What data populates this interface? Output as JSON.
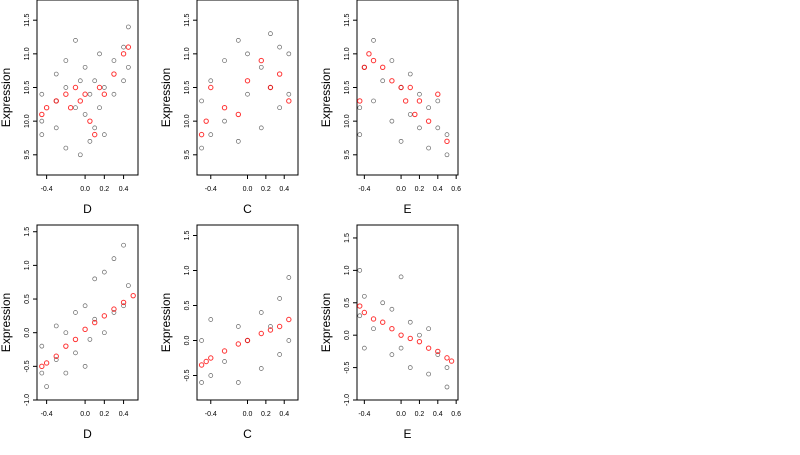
{
  "chart_data": [
    {
      "type": "scatter",
      "title": "",
      "xlabel": "D",
      "ylabel": "Expression",
      "xlim": [
        -0.5,
        0.55
      ],
      "ylim": [
        9.2,
        11.8
      ],
      "xticks": [
        "-0.4",
        "0.0",
        "0.2",
        "0.4"
      ],
      "yticks": [
        "9.5",
        "10.0",
        "10.5",
        "11.0",
        "11.5"
      ],
      "colors": {
        "observed": "#000000",
        "fitted": "#ff0000"
      },
      "series": [
        {
          "x": [
            -0.45,
            -0.45,
            -0.45,
            -0.3,
            -0.3,
            -0.3,
            -0.2,
            -0.2,
            -0.2,
            -0.1,
            -0.1,
            -0.05,
            -0.05,
            0.0,
            0.0,
            0.05,
            0.05,
            0.1,
            0.1,
            0.15,
            0.15,
            0.2,
            0.2,
            0.3,
            0.3,
            0.4,
            0.4,
            0.45,
            0.45
          ],
          "y": [
            10.0,
            10.4,
            9.8,
            10.3,
            10.7,
            9.9,
            10.5,
            9.6,
            10.9,
            10.2,
            11.2,
            9.5,
            10.6,
            10.1,
            10.8,
            9.7,
            10.4,
            10.6,
            9.9,
            10.2,
            11.0,
            10.5,
            9.8,
            10.9,
            10.4,
            11.1,
            10.6,
            11.4,
            10.8
          ]
        },
        {
          "x": [
            -0.45,
            -0.4,
            -0.3,
            -0.2,
            -0.15,
            -0.1,
            -0.05,
            0.0,
            0.05,
            0.1,
            0.15,
            0.2,
            0.3,
            0.4,
            0.45
          ],
          "y": [
            10.1,
            10.2,
            10.3,
            10.4,
            10.2,
            10.5,
            10.3,
            10.4,
            10.0,
            9.8,
            10.5,
            10.4,
            10.7,
            11.0,
            11.1
          ]
        }
      ]
    },
    {
      "type": "scatter",
      "title": "",
      "xlabel": "C",
      "ylabel": "Expression",
      "xlim": [
        -0.55,
        0.55
      ],
      "ylim": [
        9.2,
        11.8
      ],
      "xticks": [
        "-0.4",
        "0.0",
        "0.2",
        "0.4"
      ],
      "yticks": [
        "9.5",
        "10.0",
        "10.5",
        "11.0",
        "11.5"
      ],
      "colors": {
        "observed": "#000000",
        "fitted": "#ff0000"
      },
      "series": [
        {
          "x": [
            -0.5,
            -0.5,
            -0.4,
            -0.4,
            -0.25,
            -0.25,
            -0.1,
            -0.1,
            0.0,
            0.0,
            0.15,
            0.15,
            0.25,
            0.25,
            0.35,
            0.35,
            0.45,
            0.45
          ],
          "y": [
            9.6,
            10.3,
            9.8,
            10.6,
            10.0,
            10.9,
            9.7,
            11.2,
            10.4,
            11.0,
            9.9,
            10.8,
            10.5,
            11.3,
            10.2,
            11.1,
            10.4,
            11.0
          ]
        },
        {
          "x": [
            -0.5,
            -0.45,
            -0.4,
            -0.25,
            -0.1,
            0.0,
            0.15,
            0.25,
            0.35,
            0.45
          ],
          "y": [
            9.8,
            10.0,
            10.5,
            10.2,
            10.1,
            10.6,
            10.9,
            10.5,
            10.7,
            10.3
          ]
        }
      ]
    },
    {
      "type": "scatter",
      "title": "",
      "xlabel": "E",
      "ylabel": "Expression",
      "xlim": [
        -0.48,
        0.62
      ],
      "ylim": [
        9.2,
        11.8
      ],
      "xticks": [
        "-0.4",
        "0.0",
        "0.2",
        "0.4",
        "0.6"
      ],
      "yticks": [
        "9.5",
        "10.0",
        "10.5",
        "11.0",
        "11.5"
      ],
      "colors": {
        "observed": "#000000",
        "fitted": "#ff0000"
      },
      "series": [
        {
          "x": [
            -0.45,
            -0.45,
            -0.4,
            -0.3,
            -0.3,
            -0.2,
            -0.1,
            -0.1,
            0.0,
            0.0,
            0.1,
            0.1,
            0.2,
            0.2,
            0.3,
            0.3,
            0.4,
            0.4,
            0.5,
            0.5
          ],
          "y": [
            10.2,
            9.8,
            10.8,
            11.2,
            10.3,
            10.6,
            10.9,
            10.0,
            10.5,
            9.7,
            10.7,
            10.1,
            10.4,
            9.9,
            10.2,
            9.6,
            10.3,
            9.9,
            9.8,
            9.5
          ]
        },
        {
          "x": [
            -0.45,
            -0.4,
            -0.35,
            -0.3,
            -0.2,
            -0.1,
            0.0,
            0.05,
            0.1,
            0.15,
            0.2,
            0.3,
            0.4,
            0.5
          ],
          "y": [
            10.3,
            10.8,
            11.0,
            10.9,
            10.8,
            10.6,
            10.5,
            10.3,
            10.5,
            10.1,
            10.3,
            10.0,
            10.4,
            9.7
          ]
        }
      ]
    },
    {
      "type": "scatter",
      "title": "",
      "xlabel": "D",
      "ylabel": "Expression",
      "xlim": [
        -0.5,
        0.55
      ],
      "ylim": [
        -1.0,
        1.6
      ],
      "xticks": [
        "-0.4",
        "0.0",
        "0.2",
        "0.4"
      ],
      "yticks": [
        "-1.0",
        "-0.5",
        "0.0",
        "0.5",
        "1.0",
        "1.5"
      ],
      "colors": {
        "observed": "#000000",
        "fitted": "#ff0000"
      },
      "series": [
        {
          "x": [
            -0.45,
            -0.45,
            -0.4,
            -0.3,
            -0.3,
            -0.2,
            -0.2,
            -0.1,
            -0.1,
            0.0,
            0.0,
            0.05,
            0.1,
            0.1,
            0.2,
            0.2,
            0.3,
            0.3,
            0.4,
            0.4,
            0.45
          ],
          "y": [
            -0.6,
            -0.2,
            -0.8,
            -0.4,
            0.1,
            -0.6,
            0.0,
            -0.3,
            0.3,
            -0.5,
            0.4,
            -0.1,
            0.2,
            0.8,
            0.0,
            0.9,
            0.3,
            1.1,
            0.4,
            1.3,
            0.7
          ]
        },
        {
          "x": [
            -0.45,
            -0.4,
            -0.3,
            -0.2,
            -0.1,
            0.0,
            0.1,
            0.2,
            0.3,
            0.4,
            0.5
          ],
          "y": [
            -0.5,
            -0.45,
            -0.35,
            -0.2,
            -0.1,
            0.05,
            0.15,
            0.25,
            0.35,
            0.45,
            0.55
          ]
        }
      ]
    },
    {
      "type": "scatter",
      "title": "",
      "xlabel": "C",
      "ylabel": "Expression",
      "xlim": [
        -0.55,
        0.55
      ],
      "ylim": [
        -0.85,
        1.65
      ],
      "xticks": [
        "-0.4",
        "0.0",
        "0.2",
        "0.4"
      ],
      "yticks": [
        "-0.5",
        "0.0",
        "0.5",
        "1.0",
        "1.5"
      ],
      "colors": {
        "observed": "#000000",
        "fitted": "#ff0000"
      },
      "series": [
        {
          "x": [
            -0.5,
            -0.5,
            -0.4,
            -0.4,
            -0.25,
            -0.1,
            -0.1,
            0.0,
            0.15,
            0.15,
            0.25,
            0.35,
            0.35,
            0.45,
            0.45
          ],
          "y": [
            -0.6,
            0.0,
            -0.5,
            0.3,
            -0.3,
            -0.6,
            0.2,
            0.0,
            -0.4,
            0.4,
            0.2,
            -0.2,
            0.6,
            0.0,
            0.9
          ]
        },
        {
          "x": [
            -0.5,
            -0.45,
            -0.4,
            -0.25,
            -0.1,
            0.0,
            0.15,
            0.25,
            0.35,
            0.45
          ],
          "y": [
            -0.35,
            -0.3,
            -0.25,
            -0.15,
            -0.05,
            0.0,
            0.1,
            0.15,
            0.2,
            0.3
          ]
        }
      ]
    },
    {
      "type": "scatter",
      "title": "",
      "xlabel": "E",
      "ylabel": "Expression",
      "xlim": [
        -0.48,
        0.62
      ],
      "ylim": [
        -1.0,
        1.7
      ],
      "xticks": [
        "-0.4",
        "0.0",
        "0.2",
        "0.4",
        "0.6"
      ],
      "yticks": [
        "-1.0",
        "-0.5",
        "0.0",
        "0.5",
        "1.0",
        "1.5"
      ],
      "colors": {
        "observed": "#000000",
        "fitted": "#ff0000"
      },
      "series": [
        {
          "x": [
            -0.45,
            -0.45,
            -0.4,
            -0.4,
            -0.3,
            -0.2,
            -0.1,
            -0.1,
            0.0,
            0.0,
            0.1,
            0.1,
            0.2,
            0.3,
            0.3,
            0.4,
            0.5,
            0.5
          ],
          "y": [
            1.0,
            0.3,
            0.6,
            -0.2,
            0.1,
            0.5,
            -0.3,
            0.4,
            0.9,
            -0.2,
            0.2,
            -0.5,
            0.0,
            -0.6,
            0.1,
            -0.3,
            -0.8,
            -0.5
          ]
        },
        {
          "x": [
            -0.45,
            -0.4,
            -0.3,
            -0.2,
            -0.1,
            0.0,
            0.1,
            0.2,
            0.3,
            0.4,
            0.5,
            0.55
          ],
          "y": [
            0.45,
            0.35,
            0.25,
            0.2,
            0.1,
            0.0,
            -0.05,
            -0.1,
            -0.2,
            -0.25,
            -0.35,
            -0.4
          ]
        }
      ]
    }
  ]
}
